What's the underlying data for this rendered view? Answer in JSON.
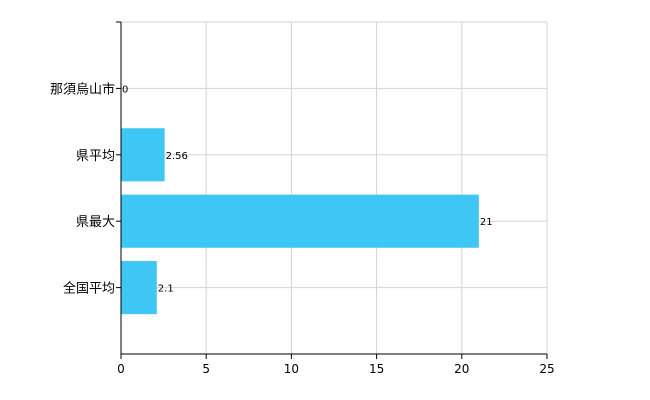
{
  "chart_data": {
    "type": "bar",
    "orientation": "horizontal",
    "categories": [
      "那須烏山市",
      "県平均",
      "県最大",
      "全国平均"
    ],
    "values": [
      0,
      2.56,
      21,
      2.1
    ],
    "data_labels": [
      "0",
      "2.56",
      "21",
      "2.1"
    ],
    "xlim": [
      0,
      25
    ],
    "x_ticks": [
      0,
      5,
      10,
      15,
      20,
      25
    ],
    "x_tick_labels": [
      "0",
      "5",
      "10",
      "15",
      "20",
      "25"
    ],
    "grid": true,
    "legend": "none",
    "bar_color": "#3EC6F4",
    "grid_color": "#D3D3D3",
    "axis_color": "#000000"
  }
}
